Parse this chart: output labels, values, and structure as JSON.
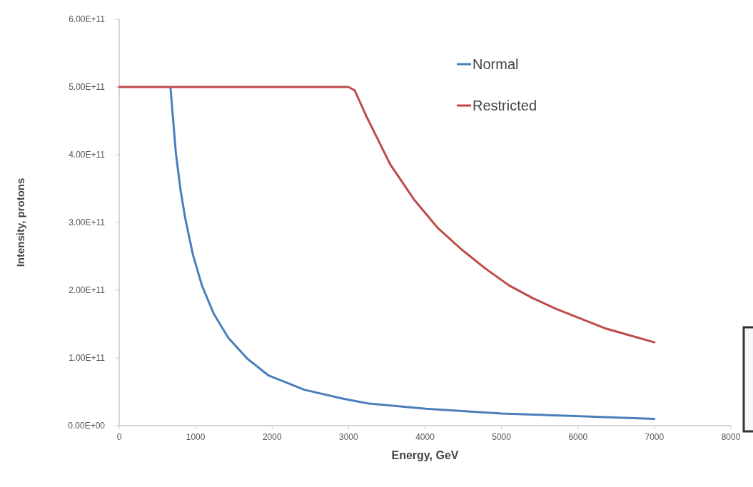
{
  "chart_data": {
    "type": "line",
    "xlabel": "Energy, GeV",
    "ylabel": "Intensity, protons",
    "xlim": [
      0,
      8000
    ],
    "xticks": [
      0,
      1000,
      2000,
      3000,
      4000,
      5000,
      6000,
      7000,
      8000
    ],
    "ylim": [
      0,
      600000000000.0
    ],
    "yticks": [
      {
        "value": 0,
        "label": "0.00E+00"
      },
      {
        "value": 100000000000.0,
        "label": "1.00E+11"
      },
      {
        "value": 200000000000.0,
        "label": "2.00E+11"
      },
      {
        "value": 300000000000.0,
        "label": "3.00E+11"
      },
      {
        "value": 400000000000.0,
        "label": "4.00E+11"
      },
      {
        "value": 500000000000.0,
        "label": "5.00E+11"
      },
      {
        "value": 600000000000.0,
        "label": "6.00E+11"
      }
    ],
    "grid": false,
    "legend": "top right",
    "marker": "none",
    "line_style": "solid",
    "series": [
      {
        "name": "Normal",
        "color": "#4a7ebb",
        "x": [
          670,
          740,
          802,
          864,
          963,
          1082,
          1238,
          1425,
          1675,
          1955,
          2422,
          2921,
          3248,
          4011,
          5007,
          6036,
          7000
        ],
        "values": [
          500000000000.0,
          404000000000.0,
          348000000000.0,
          306000000000.0,
          253000000000.0,
          207000000000.0,
          165000000000.0,
          130000000000.0,
          99000000000.0,
          74000000000.0,
          53000000000.0,
          40000000000.0,
          33000000000.0,
          25000000000.0,
          18000000000.0,
          14000000000.0,
          10000000000.0
        ]
      },
      {
        "name": "Restricted",
        "color": "#be4b48",
        "x": [
          0,
          670,
          3000,
          3080,
          3232,
          3544,
          3855,
          4166,
          4479,
          4790,
          5100,
          5413,
          5724,
          6036,
          6348,
          6659,
          7000
        ],
        "values": [
          500000000000.0,
          500000000000.0,
          500000000000.0,
          495000000000.0,
          457000000000.0,
          386000000000.0,
          334000000000.0,
          292000000000.0,
          260000000000.0,
          232000000000.0,
          207000000000.0,
          188000000000.0,
          172000000000.0,
          158000000000.0,
          144000000000.0,
          134000000000.0,
          123000000000.0
        ]
      }
    ]
  }
}
